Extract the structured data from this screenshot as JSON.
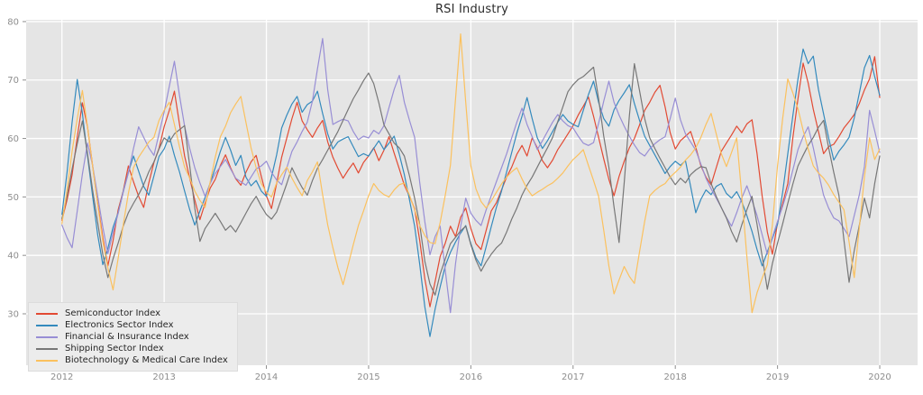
{
  "title": "RSI Industry",
  "colors": {
    "figure_bg": "#ffffff",
    "plot_bg": "#e5e5e5",
    "grid": "#ffffff",
    "tick": "#8e8e8e",
    "tick_label": "#8e8e8e",
    "title_text": "#2b2b2b",
    "legend_bg": "#ececec",
    "legend_text": "#262626"
  },
  "chart_data": {
    "type": "line",
    "title": "RSI Industry",
    "xlabel": "",
    "ylabel": "",
    "grid": true,
    "legend_position": "lower left",
    "x_start": 2012.0,
    "x_step": 0.05,
    "x_ticks": [
      2012,
      2013,
      2014,
      2015,
      2016,
      2017,
      2018,
      2019,
      2020
    ],
    "y_ticks": [
      30,
      40,
      50,
      60,
      70,
      80
    ],
    "xlim": [
      2011.65,
      2020.37
    ],
    "ylim": [
      21.2,
      80.3
    ],
    "series": [
      {
        "name": "Semiconductor Index",
        "color": "#E24A33",
        "values": [
          46.0,
          49.5,
          53.8,
          60.2,
          66.1,
          62.0,
          55.4,
          48.9,
          43.0,
          38.2,
          42.5,
          47.8,
          51.0,
          55.3,
          52.6,
          50.1,
          48.2,
          52.4,
          55.9,
          58.3,
          62.0,
          64.8,
          68.1,
          62.5,
          57.0,
          53.2,
          49.5,
          46.1,
          48.9,
          51.5,
          53.0,
          55.4,
          57.2,
          55.0,
          53.1,
          52.0,
          54.2,
          56.0,
          57.1,
          53.5,
          50.2,
          48.0,
          52.3,
          56.8,
          60.1,
          63.4,
          66.2,
          63.0,
          61.5,
          60.2,
          61.8,
          63.1,
          59.4,
          56.8,
          54.9,
          53.2,
          54.6,
          55.8,
          54.1,
          55.9,
          57.0,
          58.4,
          56.2,
          58.0,
          60.3,
          57.5,
          54.8,
          52.0,
          50.1,
          48.0,
          42.5,
          36.0,
          31.2,
          35.5,
          39.8,
          42.1,
          45.0,
          43.2,
          46.5,
          48.1,
          44.6,
          42.0,
          41.0,
          44.3,
          47.6,
          49.0,
          51.2,
          53.4,
          55.1,
          57.3,
          58.8,
          57.0,
          60.1,
          58.4,
          56.2,
          55.0,
          56.3,
          58.1,
          59.4,
          60.8,
          62.2,
          64.0,
          65.5,
          67.1,
          63.8,
          60.2,
          56.5,
          53.0,
          50.2,
          53.5,
          56.1,
          58.4,
          60.0,
          62.3,
          64.8,
          66.2,
          67.9,
          69.1,
          65.4,
          61.0,
          58.2,
          59.6,
          60.4,
          61.2,
          58.5,
          55.3,
          53.4,
          52.1,
          55.0,
          57.8,
          59.2,
          60.6,
          62.1,
          61.0,
          62.5,
          63.2,
          57.4,
          50.1,
          44.0,
          40.2,
          45.5,
          48.9,
          52.3,
          60.1,
          66.8,
          72.9,
          69.5,
          65.0,
          61.2,
          57.4,
          58.6,
          59.0,
          60.3,
          61.8,
          62.9,
          64.1,
          66.0,
          68.3,
          70.2,
          74.0,
          67.0
        ]
      },
      {
        "name": "Electronics Sector Index",
        "color": "#348ABD",
        "values": [
          47.0,
          54.2,
          62.8,
          70.1,
          64.3,
          57.0,
          50.2,
          43.5,
          38.4,
          41.2,
          44.8,
          47.3,
          50.9,
          54.2,
          57.0,
          54.4,
          51.8,
          50.3,
          53.6,
          56.9,
          58.2,
          60.4,
          57.1,
          54.3,
          51.0,
          47.8,
          45.2,
          47.6,
          49.9,
          52.4,
          55.0,
          57.8,
          60.2,
          58.0,
          55.4,
          57.1,
          53.4,
          51.9,
          52.8,
          51.0,
          50.1,
          53.4,
          57.2,
          61.8,
          64.0,
          65.9,
          67.2,
          64.5,
          65.8,
          66.4,
          68.1,
          64.3,
          60.8,
          58.2,
          59.4,
          59.9,
          60.3,
          58.6,
          56.9,
          57.4,
          57.0,
          58.3,
          59.6,
          58.1,
          59.2,
          60.4,
          57.3,
          53.8,
          49.5,
          45.0,
          38.4,
          31.2,
          26.1,
          30.8,
          34.6,
          38.2,
          40.5,
          42.3,
          43.8,
          45.1,
          42.0,
          39.6,
          38.2,
          41.5,
          44.9,
          48.2,
          51.0,
          54.3,
          57.6,
          60.9,
          63.8,
          67.0,
          63.4,
          60.1,
          58.3,
          59.6,
          61.2,
          62.8,
          64.1,
          63.0,
          62.4,
          62.0,
          64.8,
          67.5,
          69.8,
          66.2,
          63.4,
          62.1,
          64.9,
          66.5,
          67.8,
          69.2,
          66.0,
          63.1,
          60.4,
          58.8,
          57.2,
          55.6,
          54.0,
          55.2,
          56.1,
          55.4,
          56.2,
          51.8,
          47.3,
          49.6,
          51.2,
          50.4,
          51.8,
          52.3,
          50.6,
          49.8,
          50.9,
          49.2,
          46.8,
          44.1,
          41.0,
          38.2,
          40.6,
          42.9,
          45.3,
          50.8,
          57.4,
          63.9,
          70.2,
          75.3,
          72.8,
          74.1,
          68.4,
          64.2,
          60.1,
          56.3,
          57.8,
          58.9,
          60.2,
          63.5,
          67.8,
          72.1,
          74.2,
          70.6,
          67.4
        ]
      },
      {
        "name": "Financial & Insurance Index",
        "color": "#988ED5",
        "values": [
          45.2,
          43.0,
          41.3,
          47.6,
          53.9,
          59.2,
          55.4,
          50.1,
          44.8,
          40.3,
          43.9,
          47.2,
          50.8,
          54.1,
          58.3,
          62.0,
          60.2,
          58.4,
          57.1,
          60.8,
          64.5,
          68.9,
          73.2,
          67.4,
          62.1,
          58.3,
          55.0,
          52.4,
          50.1,
          52.3,
          54.0,
          55.2,
          56.4,
          54.8,
          53.2,
          52.6,
          52.0,
          53.4,
          54.8,
          55.3,
          56.1,
          54.2,
          52.9,
          52.1,
          55.0,
          57.8,
          59.4,
          61.2,
          62.8,
          66.4,
          71.9,
          77.1,
          68.3,
          62.4,
          62.9,
          63.3,
          63.0,
          61.2,
          59.8,
          60.4,
          60.1,
          61.4,
          60.8,
          62.2,
          65.3,
          68.4,
          70.8,
          66.2,
          63.1,
          60.2,
          52.4,
          45.8,
          40.1,
          43.2,
          45.0,
          37.4,
          30.2,
          38.6,
          44.9,
          49.8,
          47.2,
          46.0,
          45.1,
          47.8,
          50.2,
          52.6,
          55.0,
          57.4,
          60.1,
          62.8,
          65.2,
          62.4,
          60.3,
          58.1,
          59.6,
          61.2,
          62.8,
          64.1,
          63.0,
          62.2,
          61.8,
          60.4,
          59.2,
          58.8,
          59.3,
          62.6,
          66.4,
          69.8,
          66.2,
          64.0,
          62.1,
          60.4,
          58.9,
          57.6,
          57.0,
          58.2,
          59.1,
          59.8,
          60.3,
          63.4,
          66.9,
          63.2,
          60.8,
          59.4,
          58.0,
          55.6,
          53.2,
          51.4,
          49.8,
          48.2,
          46.5,
          45.0,
          47.3,
          49.8,
          51.9,
          49.4,
          46.8,
          43.5,
          40.2,
          43.1,
          45.8,
          48.4,
          51.2,
          54.6,
          58.1,
          60.3,
          62.0,
          58.4,
          54.2,
          50.3,
          48.1,
          46.4,
          45.9,
          44.6,
          43.2,
          46.8,
          50.4,
          55.2,
          64.8,
          61.3,
          57.6
        ]
      },
      {
        "name": "Shipping Sector Index",
        "color": "#777777",
        "values": [
          46.3,
          50.2,
          54.8,
          59.1,
          63.0,
          57.4,
          51.2,
          45.6,
          40.1,
          36.2,
          39.4,
          42.1,
          45.0,
          47.3,
          48.9,
          50.4,
          52.1,
          54.3,
          56.0,
          58.2,
          60.1,
          59.4,
          60.8,
          61.5,
          62.2,
          55.3,
          48.1,
          42.4,
          44.6,
          45.9,
          47.2,
          45.8,
          44.3,
          45.1,
          44.0,
          45.6,
          47.2,
          48.8,
          50.1,
          48.4,
          47.0,
          46.2,
          47.4,
          49.8,
          52.3,
          55.0,
          53.2,
          51.6,
          50.3,
          52.8,
          54.9,
          56.4,
          58.0,
          59.6,
          61.2,
          63.1,
          65.0,
          66.8,
          68.3,
          69.9,
          71.2,
          69.4,
          66.1,
          62.3,
          60.8,
          59.2,
          58.4,
          57.0,
          53.6,
          49.8,
          45.2,
          39.0,
          35.1,
          33.2,
          36.8,
          39.4,
          42.0,
          43.1,
          44.2,
          45.0,
          41.8,
          39.2,
          37.3,
          38.9,
          40.2,
          41.3,
          42.1,
          44.0,
          46.2,
          48.1,
          50.3,
          52.0,
          53.4,
          55.1,
          56.8,
          58.4,
          60.2,
          62.9,
          65.4,
          68.0,
          69.2,
          70.1,
          70.6,
          71.4,
          72.2,
          66.8,
          60.4,
          55.1,
          48.3,
          42.2,
          52.4,
          63.8,
          72.8,
          68.2,
          63.4,
          60.1,
          58.3,
          56.6,
          55.0,
          53.4,
          52.1,
          53.2,
          52.4,
          53.8,
          54.6,
          55.2,
          55.0,
          52.3,
          50.1,
          48.2,
          46.4,
          44.1,
          42.3,
          45.2,
          47.8,
          50.1,
          45.3,
          39.8,
          34.2,
          38.6,
          42.1,
          45.4,
          48.9,
          52.2,
          55.3,
          57.1,
          58.8,
          60.2,
          61.9,
          63.1,
          58.4,
          54.2,
          50.3,
          42.6,
          35.4,
          40.8,
          45.2,
          49.8,
          46.4,
          52.3,
          57.0
        ]
      },
      {
        "name": "Biotechnology & Medical Care Index",
        "color": "#FBC15E",
        "values": [
          45.4,
          51.2,
          57.8,
          63.4,
          68.2,
          62.0,
          55.3,
          48.6,
          42.4,
          37.8,
          34.1,
          39.5,
          45.2,
          50.6,
          55.0,
          56.8,
          58.1,
          59.4,
          60.2,
          63.1,
          64.8,
          66.2,
          62.4,
          58.6,
          55.1,
          53.2,
          51.0,
          49.4,
          48.2,
          52.6,
          56.8,
          60.3,
          62.1,
          64.4,
          65.9,
          67.2,
          62.8,
          58.4,
          55.0,
          52.3,
          50.8,
          50.0,
          52.4,
          53.8,
          55.1,
          53.2,
          51.6,
          50.2,
          52.8,
          54.3,
          56.0,
          50.4,
          45.2,
          41.3,
          37.9,
          35.0,
          38.4,
          41.8,
          45.1,
          47.6,
          50.2,
          52.3,
          51.1,
          50.4,
          50.0,
          51.2,
          52.1,
          52.4,
          50.3,
          47.8,
          45.1,
          43.4,
          42.2,
          42.0,
          45.6,
          50.3,
          55.4,
          66.8,
          77.9,
          66.2,
          55.3,
          51.4,
          49.2,
          48.1,
          49.3,
          50.8,
          52.2,
          53.4,
          54.3,
          55.0,
          53.1,
          51.4,
          50.2,
          50.8,
          51.3,
          51.9,
          52.4,
          53.2,
          54.1,
          55.3,
          56.4,
          57.2,
          58.1,
          55.4,
          52.8,
          50.1,
          44.3,
          38.2,
          33.4,
          35.8,
          38.1,
          36.4,
          35.2,
          40.6,
          45.8,
          50.2,
          51.1,
          51.8,
          52.3,
          53.4,
          54.2,
          55.1,
          56.3,
          57.2,
          58.4,
          60.2,
          62.4,
          64.3,
          60.8,
          57.4,
          55.2,
          57.6,
          60.1,
          50.4,
          39.8,
          30.2,
          33.6,
          36.1,
          38.4,
          45.2,
          55.3,
          63.4,
          70.2,
          67.8,
          65.1,
          61.4,
          58.2,
          55.3,
          54.1,
          53.2,
          52.0,
          50.4,
          49.1,
          47.8,
          42.3,
          36.2,
          44.8,
          53.4,
          60.1,
          56.4,
          58.2
        ]
      }
    ]
  }
}
